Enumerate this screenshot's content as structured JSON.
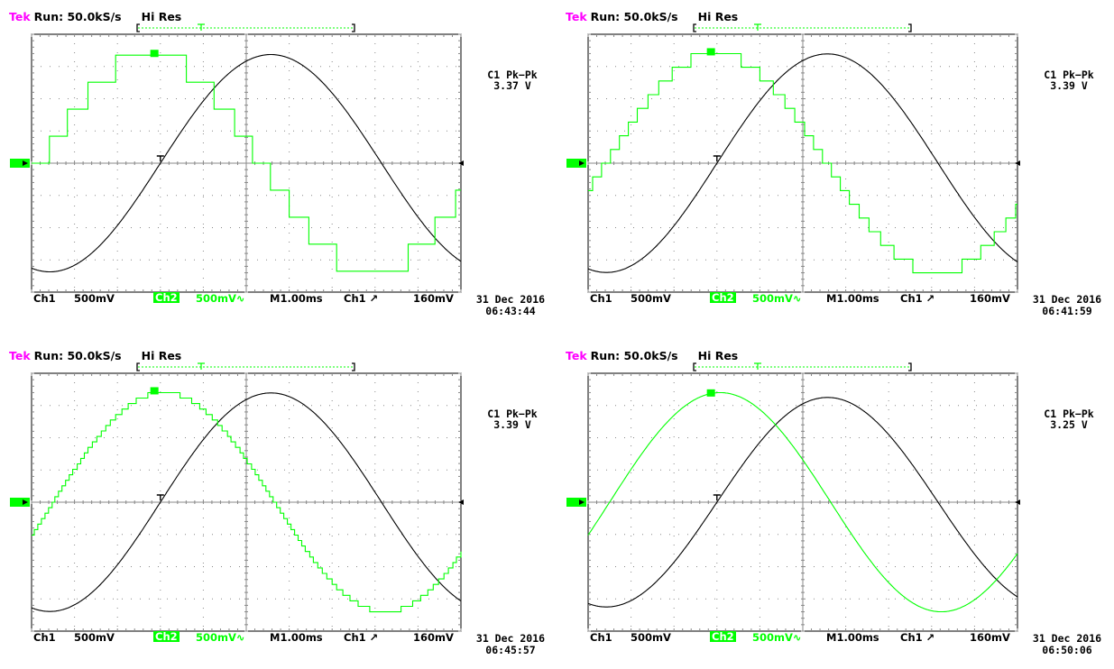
{
  "header": {
    "brand": "Tek",
    "run": "Run: 50.0kS/s",
    "mode": "Hi Res"
  },
  "footer": {
    "ch1": "Ch1",
    "ch1_scale": "500mV",
    "ch2": "Ch2",
    "ch2_scale": "500mV∿",
    "timebase": "M1.00ms",
    "trigger": "Ch1 ↗",
    "trigger_level": "160mV"
  },
  "colors": {
    "brand": "#ff00ff",
    "ch2": "#00ff00",
    "ch1": "#000000",
    "grid": "#888888"
  },
  "panels": [
    {
      "measurement_label": "C1 Pk−Pk",
      "measurement_value": "3.37 V",
      "date": "31 Dec 2016",
      "time": "06:43:44"
    },
    {
      "measurement_label": "C1 Pk−Pk",
      "measurement_value": "3.39 V",
      "date": "31 Dec 2016",
      "time": "06:41:59"
    },
    {
      "measurement_label": "C1 Pk−Pk",
      "measurement_value": "3.39 V",
      "date": "31 Dec 2016",
      "time": "06:45:57"
    },
    {
      "measurement_label": "C1 Pk−Pk",
      "measurement_value": "3.25 V",
      "date": "31 Dec 2016",
      "time": "06:50:06"
    }
  ],
  "chart_data": [
    {
      "type": "line",
      "x_unit": "div",
      "y_unit": "div",
      "xlim": [
        -5,
        5
      ],
      "ylim": [
        -4,
        4
      ],
      "grid": true,
      "series": [
        {
          "channel": "Ch1",
          "shape": "sine",
          "amplitude_div": 3.37,
          "period_div": 10.3,
          "zero_cross_div": -2.0,
          "steps": 0
        },
        {
          "channel": "Ch2",
          "shape": "stair-sine",
          "amplitude_div": 3.35,
          "period_div": 10.3,
          "zero_cross_div": -4.8,
          "steps": 8
        }
      ]
    },
    {
      "type": "line",
      "x_unit": "div",
      "y_unit": "div",
      "xlim": [
        -5,
        5
      ],
      "ylim": [
        -4,
        4
      ],
      "grid": true,
      "series": [
        {
          "channel": "Ch1",
          "shape": "sine",
          "amplitude_div": 3.39,
          "period_div": 10.3,
          "zero_cross_div": -2.0,
          "steps": 0
        },
        {
          "channel": "Ch2",
          "shape": "stair-sine",
          "amplitude_div": 3.4,
          "period_div": 10.3,
          "zero_cross_div": -4.6,
          "steps": 16
        }
      ]
    },
    {
      "type": "line",
      "x_unit": "div",
      "y_unit": "div",
      "xlim": [
        -5,
        5
      ],
      "ylim": [
        -4,
        4
      ],
      "grid": true,
      "series": [
        {
          "channel": "Ch1",
          "shape": "sine",
          "amplitude_div": 3.39,
          "period_div": 10.3,
          "zero_cross_div": -2.0,
          "steps": 0
        },
        {
          "channel": "Ch2",
          "shape": "stair-sine",
          "amplitude_div": 3.4,
          "period_div": 10.3,
          "zero_cross_div": -4.5,
          "steps": 40
        }
      ]
    },
    {
      "type": "line",
      "x_unit": "div",
      "y_unit": "div",
      "xlim": [
        -5,
        5
      ],
      "ylim": [
        -4,
        4
      ],
      "grid": true,
      "series": [
        {
          "channel": "Ch1",
          "shape": "sine",
          "amplitude_div": 3.25,
          "period_div": 10.3,
          "zero_cross_div": -2.0,
          "steps": 0
        },
        {
          "channel": "Ch2",
          "shape": "sine",
          "amplitude_div": 3.4,
          "period_div": 10.3,
          "zero_cross_div": -4.5,
          "steps": 0
        }
      ]
    }
  ]
}
